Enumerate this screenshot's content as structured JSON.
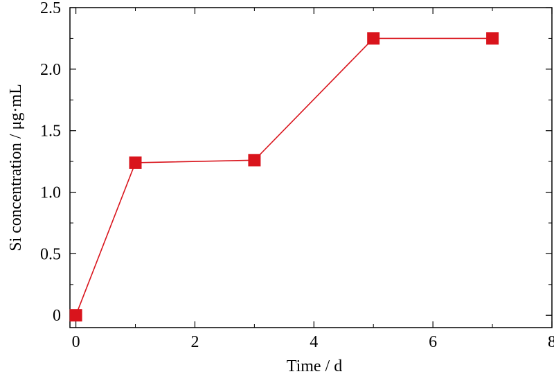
{
  "chart_data": {
    "type": "line",
    "xlabel": "Time / d",
    "ylabel": "Si concentration / μg·mL",
    "xlim": [
      -0.1,
      8
    ],
    "ylim": [
      -0.1,
      2.5
    ],
    "xticks": [
      0,
      2,
      4,
      6,
      8
    ],
    "xtick_labels": [
      "0",
      "2",
      "4",
      "6",
      "8"
    ],
    "yticks": [
      0,
      0.5,
      1.0,
      1.5,
      2.0,
      2.5
    ],
    "ytick_labels": [
      "0",
      "0.5",
      "1.0",
      "1.5",
      "2.0",
      "2.5"
    ],
    "grid": false,
    "legend": "none",
    "series": [
      {
        "x": [
          0,
          1,
          3,
          5,
          7
        ],
        "y": [
          0,
          1.24,
          1.26,
          2.25,
          2.25
        ],
        "color": "#d9141c",
        "marker": "square"
      }
    ]
  }
}
